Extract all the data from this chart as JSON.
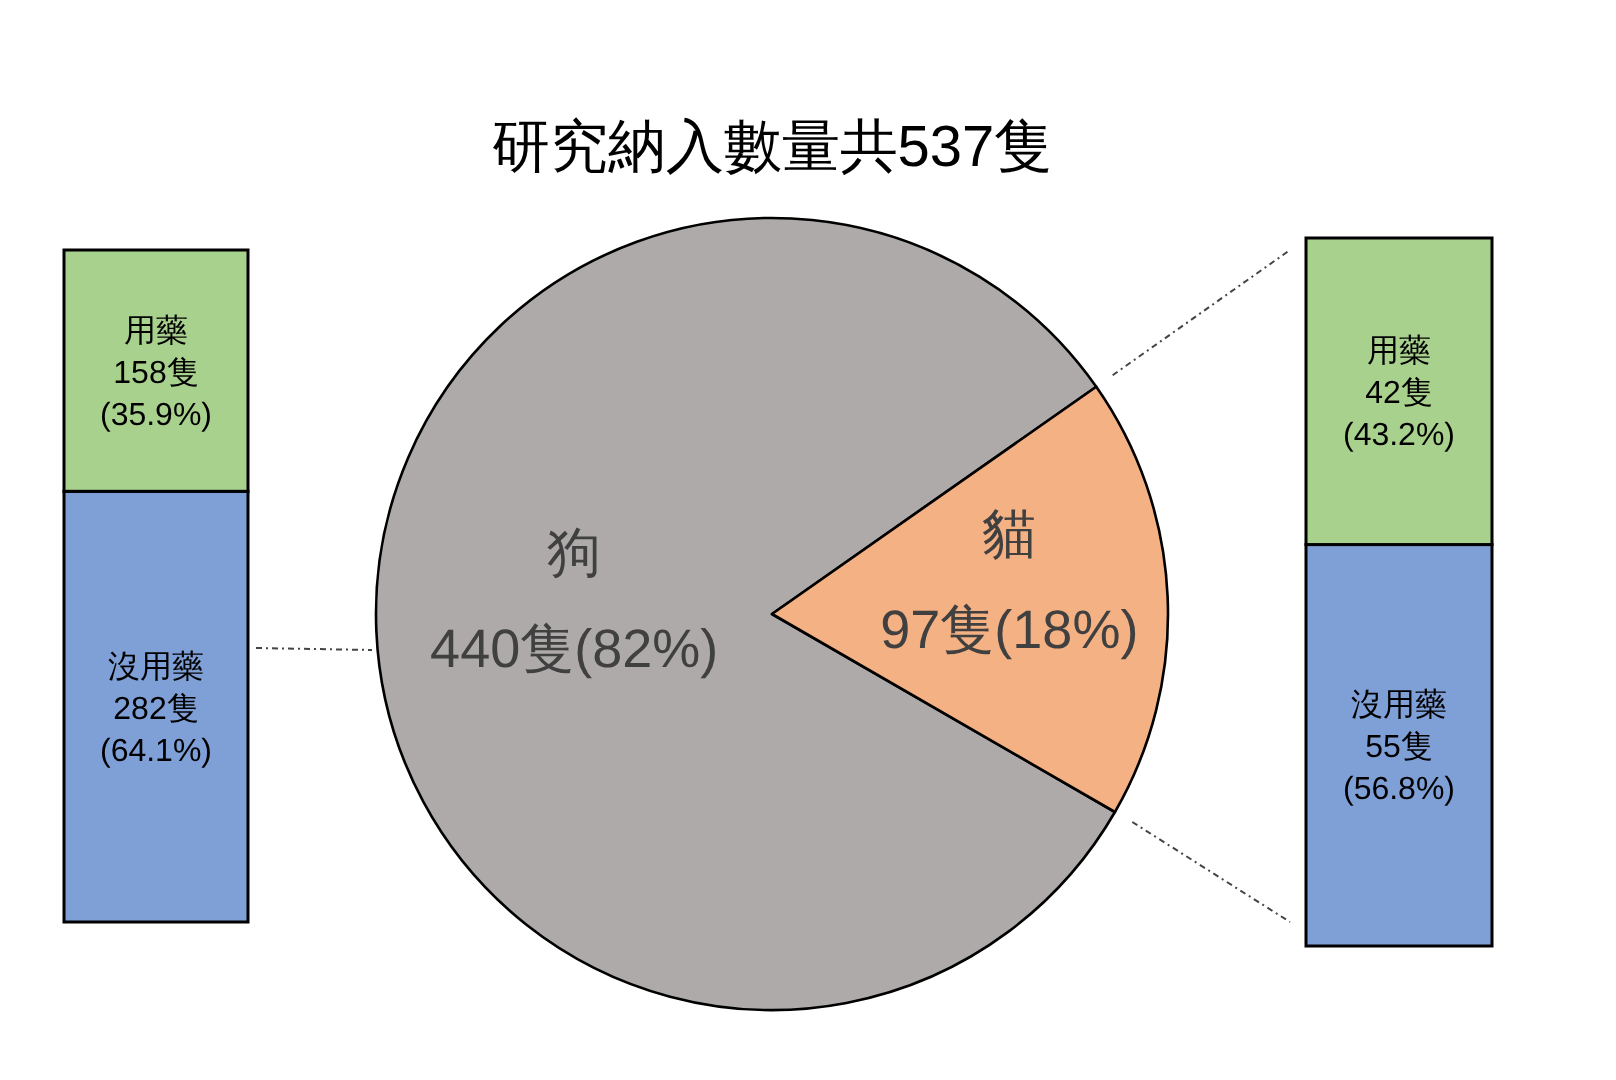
{
  "chart_data": [
    {
      "type": "bar",
      "stacked": true,
      "categories": [
        null
      ],
      "series": [
        {
          "name": "沒用藥",
          "color": "#7f9fd7",
          "values": [
            282
          ],
          "value_labels": [
            "282隻 (64.1%)"
          ]
        },
        {
          "name": "用藥",
          "color": "#a9d18e",
          "values": [
            158
          ],
          "value_labels": [
            "158隻 (35.9%)"
          ]
        }
      ]
    },
    {
      "type": "pie",
      "title": "研究納入數量共537隻",
      "categories": [
        "狗",
        "貓"
      ],
      "values": [
        440,
        97
      ],
      "colors": [
        "#aeaaaa",
        "#f4b183"
      ],
      "value_labels": [
        "440隻(82%)",
        "97隻(18%)"
      ]
    },
    {
      "type": "bar",
      "stacked": true,
      "categories": [
        null
      ],
      "series": [
        {
          "name": "沒用藥",
          "color": "#7f9fd7",
          "values": [
            55
          ],
          "value_labels": [
            "55隻 (56.8%)"
          ]
        },
        {
          "name": "用藥",
          "color": "#a9d18e",
          "values": [
            42
          ],
          "value_labels": [
            "42隻 (43.2%)"
          ]
        }
      ]
    }
  ]
}
